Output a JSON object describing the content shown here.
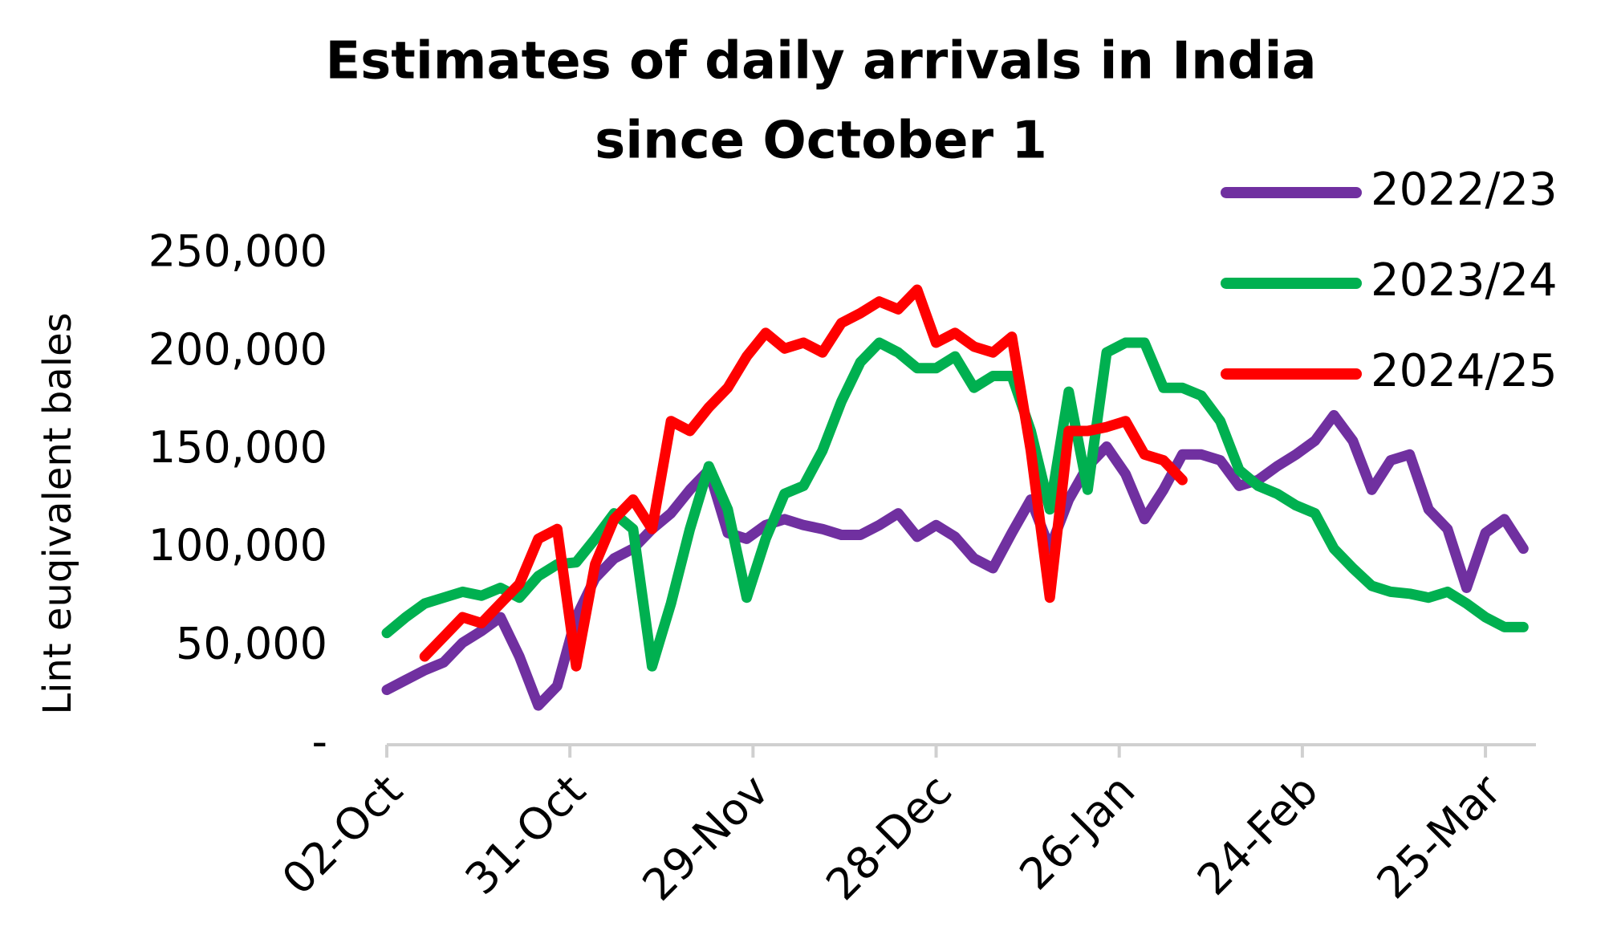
{
  "chart_data": {
    "type": "line",
    "title": [
      "Estimates of daily arrivals in India",
      "since October 1"
    ],
    "y_label": "Lint euqivalent bales",
    "x": [
      0,
      3,
      6,
      9,
      12,
      15,
      18,
      21,
      24,
      27,
      30,
      33,
      36,
      39,
      42,
      45,
      48,
      51,
      54,
      57,
      60,
      63,
      66,
      69,
      72,
      75,
      78,
      81,
      84,
      87,
      90,
      93,
      96,
      99,
      102,
      105,
      108,
      111,
      114,
      117,
      120,
      123,
      126,
      129,
      132,
      135,
      138,
      141,
      144,
      147,
      150,
      153,
      156,
      159,
      162,
      165,
      168,
      171,
      174,
      177,
      180
    ],
    "xlim": [
      0,
      182
    ],
    "xticks": [
      {
        "value": 0,
        "label": "02-Oct"
      },
      {
        "value": 29,
        "label": "31-Oct"
      },
      {
        "value": 58,
        "label": "29-Nov"
      },
      {
        "value": 87,
        "label": "28-Dec"
      },
      {
        "value": 116,
        "label": "26-Jan"
      },
      {
        "value": 145,
        "label": "24-Feb"
      },
      {
        "value": 174,
        "label": "25-Mar"
      }
    ],
    "ylim": [
      0,
      250000
    ],
    "yticks": [
      {
        "value": 0,
        "label": "-"
      },
      {
        "value": 50000,
        "label": "50,000"
      },
      {
        "value": 100000,
        "label": "100,000"
      },
      {
        "value": 150000,
        "label": "150,000"
      },
      {
        "value": 200000,
        "label": "200,000"
      },
      {
        "value": 250000,
        "label": "250,000"
      }
    ],
    "grid": false,
    "legend": "top-right",
    "series": [
      {
        "name": "2022/23",
        "color": "#7030a0",
        "values": [
          28000,
          33000,
          38000,
          42000,
          52000,
          58000,
          65000,
          45000,
          20000,
          30000,
          65000,
          85000,
          95000,
          100000,
          110000,
          118000,
          130000,
          140000,
          108000,
          105000,
          112000,
          115000,
          112000,
          110000,
          107000,
          107000,
          112000,
          118000,
          106000,
          112000,
          106000,
          95000,
          90000,
          108000,
          125000,
          100000,
          125000,
          142000,
          152000,
          138000,
          115000,
          130000,
          148000,
          148000,
          145000,
          132000,
          135000,
          142000,
          148000,
          155000,
          168000,
          155000,
          130000,
          145000,
          148000,
          120000,
          110000,
          80000,
          108000,
          115000,
          100000
        ]
      },
      {
        "name": "2023/24",
        "color": "#00b050",
        "values": [
          57000,
          65000,
          72000,
          75000,
          78000,
          76000,
          80000,
          75000,
          86000,
          92000,
          93000,
          105000,
          118000,
          110000,
          40000,
          72000,
          110000,
          142000,
          120000,
          75000,
          105000,
          128000,
          132000,
          150000,
          175000,
          195000,
          205000,
          200000,
          192000,
          192000,
          198000,
          182000,
          188000,
          188000,
          160000,
          120000,
          180000,
          130000,
          200000,
          205000,
          205000,
          182000,
          182000,
          178000,
          165000,
          140000,
          132000,
          128000,
          122000,
          118000,
          100000,
          90000,
          81000,
          78000,
          77000,
          75000,
          78000,
          72000,
          65000,
          60000,
          60000
        ]
      },
      {
        "name": "2024/25",
        "color": "#ff0000",
        "values": [
          null,
          null,
          45000,
          55000,
          65000,
          62000,
          72000,
          82000,
          105000,
          110000,
          40000,
          92000,
          115000,
          125000,
          110000,
          165000,
          160000,
          172000,
          182000,
          198000,
          210000,
          202000,
          205000,
          200000,
          215000,
          220000,
          226000,
          222000,
          232000,
          205000,
          210000,
          203000,
          200000,
          208000,
          150000,
          75000,
          160000,
          160000,
          162000,
          165000,
          148000,
          145000,
          135000,
          null,
          null,
          null,
          null,
          null,
          null,
          null,
          null,
          null,
          null,
          null,
          null,
          null,
          null,
          null,
          null,
          null,
          null
        ]
      }
    ]
  }
}
